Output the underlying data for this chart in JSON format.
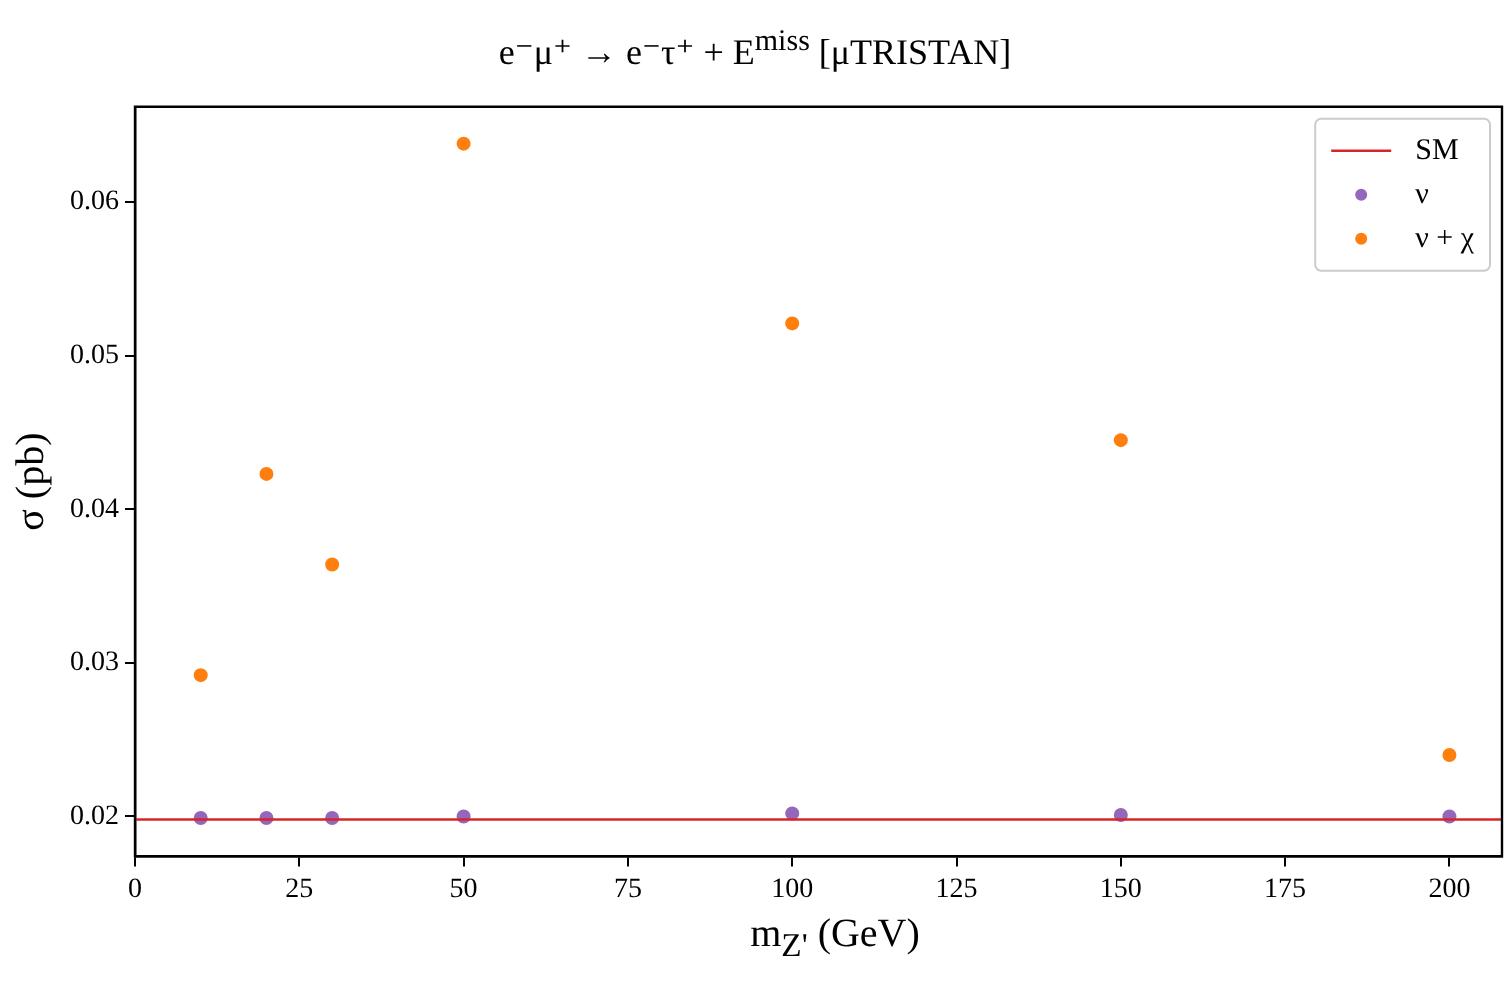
{
  "chart_data": {
    "type": "scatter",
    "title": "e⁻μ⁺ → e⁻τ⁺ + E$^{miss}$ [μTRISTAN]",
    "xlabel": "m$_{Z'}$ (GeV)",
    "ylabel": "σ (pb)",
    "x": [
      10,
      20,
      30,
      50,
      100,
      150,
      200
    ],
    "series": [
      {
        "name": "SM",
        "type": "line",
        "color": "#d62728",
        "x": [
          0,
          208
        ],
        "values": [
          0.0198,
          0.0198
        ],
        "line_style": "solid",
        "marker": "none"
      },
      {
        "name": "ν",
        "color": "#9467bd",
        "values": [
          0.0199,
          0.0199,
          0.0199,
          0.02,
          0.0202,
          0.0201,
          0.02
        ]
      },
      {
        "name": "ν + χ",
        "color": "#ff7f0e",
        "values": [
          0.0292,
          0.0423,
          0.0364,
          0.0638,
          0.0521,
          0.0445,
          0.024
        ]
      }
    ],
    "xlim": [
      0,
      208
    ],
    "xticks": [
      0,
      25,
      50,
      75,
      100,
      125,
      150,
      175,
      200
    ],
    "ylim": [
      0.0174,
      0.0662
    ],
    "yticks": [
      0.02,
      0.03,
      0.04,
      0.05,
      0.06
    ],
    "grid": false,
    "legend": "top right",
    "marker": "circle"
  }
}
